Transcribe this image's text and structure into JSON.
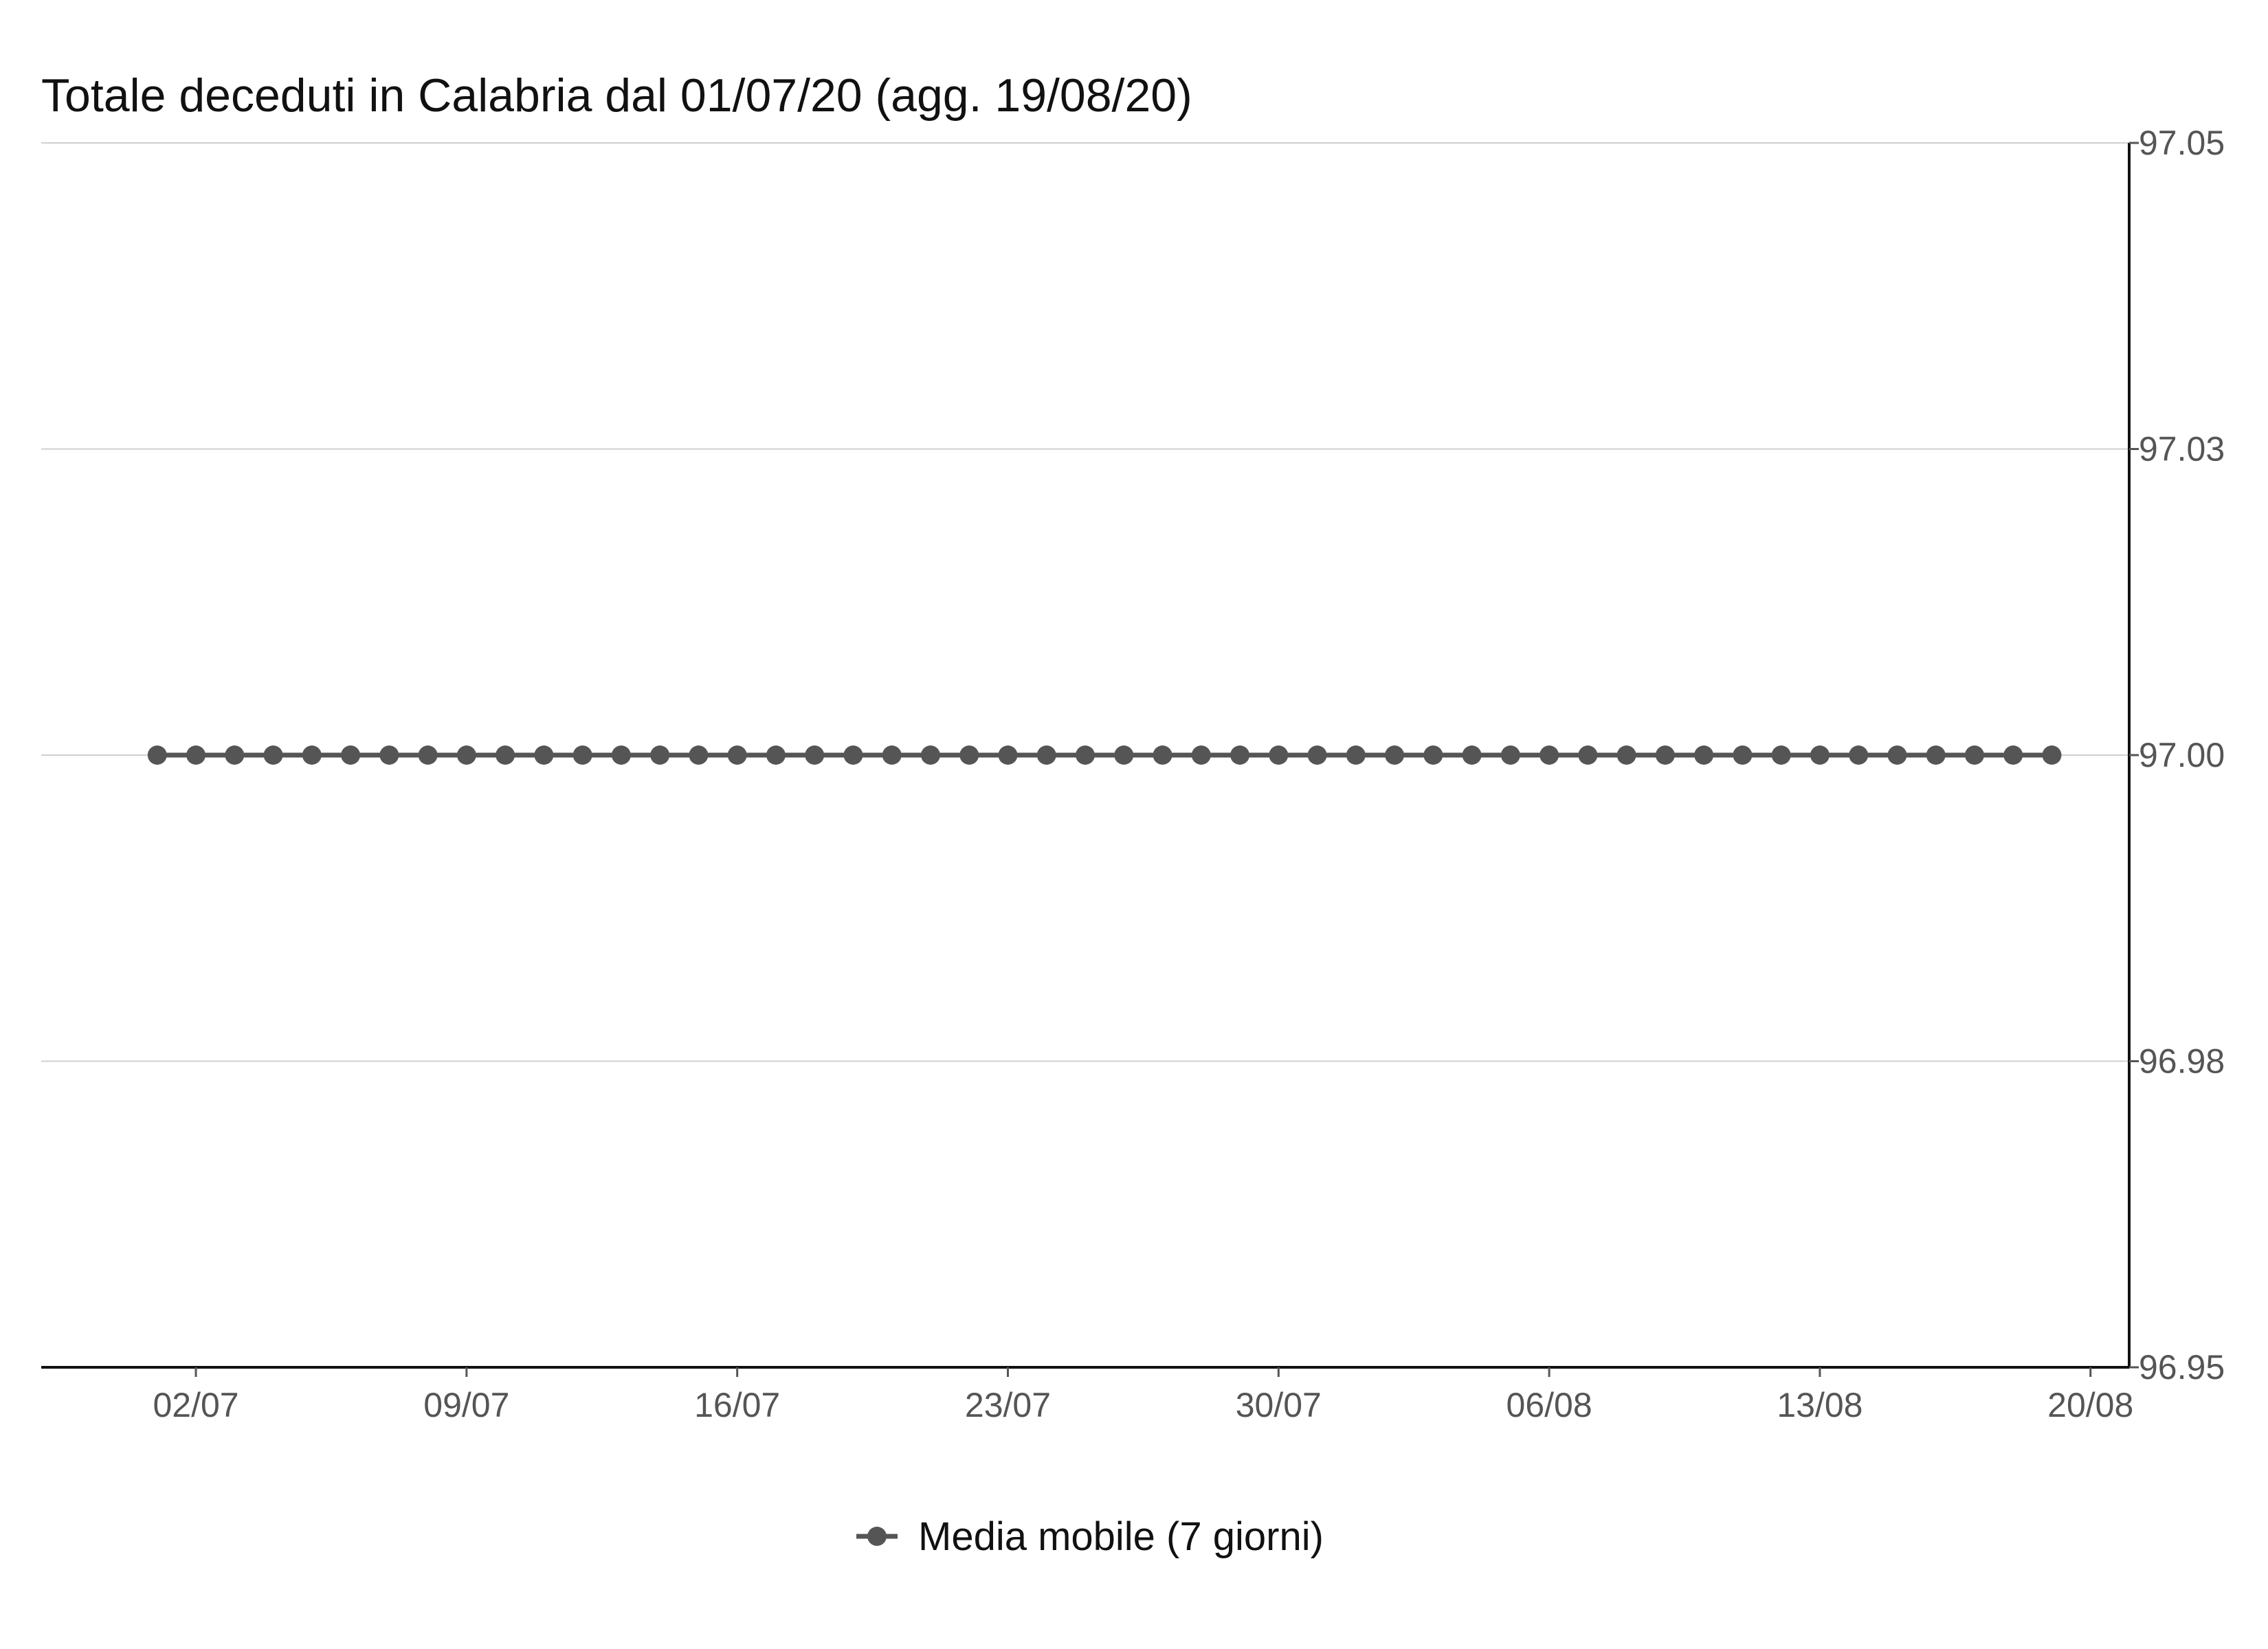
{
  "chart_data": {
    "type": "line",
    "title": "Totale deceduti in Calabria dal 01/07/20 (agg. 19/08/20)",
    "xlabel": "",
    "ylabel": "",
    "x_start": "2020-07-01",
    "x_end": "2020-08-19",
    "x_range": [
      "2020-06-28",
      "2020-08-21"
    ],
    "x_ticks": [
      "2020-07-02",
      "2020-07-09",
      "2020-07-16",
      "2020-07-23",
      "2020-07-30",
      "2020-08-06",
      "2020-08-13",
      "2020-08-20"
    ],
    "x_tick_labels": [
      "02/07",
      "09/07",
      "16/07",
      "23/07",
      "30/07",
      "06/08",
      "13/08",
      "20/08"
    ],
    "ylim": [
      96.95,
      97.05
    ],
    "y_ticks": [
      96.95,
      96.975,
      97.0,
      97.025,
      97.05
    ],
    "y_tick_labels": [
      "96.95",
      "96.98",
      "97.00",
      "97.03",
      "97.05"
    ],
    "y_axis_position": "right",
    "grid": "horizontal",
    "legend_position": "bottom",
    "series": [
      {
        "name": "Media mobile (7 giorni)",
        "color": "#555555",
        "marker": "circle",
        "constant_value": 97.0
      }
    ]
  }
}
